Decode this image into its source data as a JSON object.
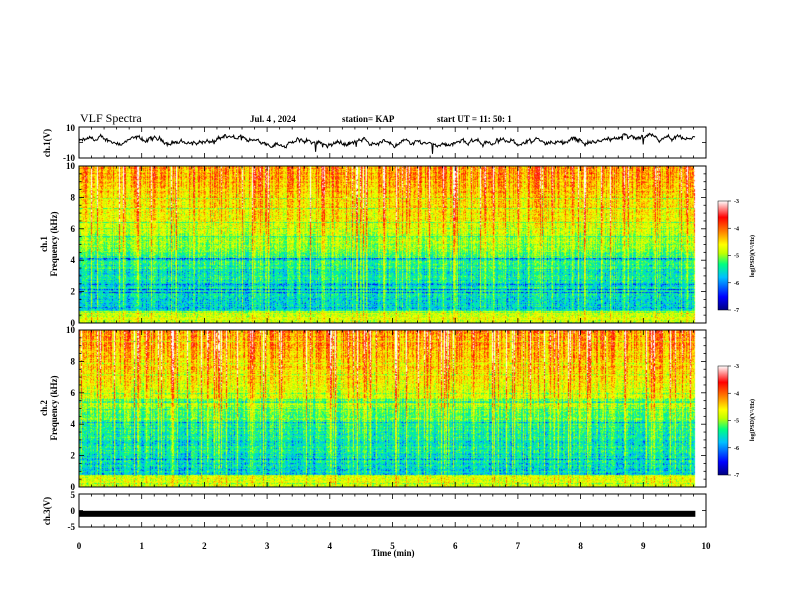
{
  "header": {
    "title": "VLF Spectra",
    "date": "Jul. 4 , 2024",
    "station": "station= KAP",
    "start": "start UT =  11: 50: 1"
  },
  "chart_data": [
    {
      "type": "line",
      "name": "ch1-waveform",
      "ylabel": "ch.1(V)",
      "ylim": [
        -10,
        10
      ],
      "yticks": [
        "10",
        "-10"
      ],
      "x_range_min": [
        0,
        9.83
      ],
      "approx_baseline_v": 0.5
    },
    {
      "type": "heatmap",
      "name": "ch1-spectrogram",
      "ylabel": "ch.1\nFrequency (kHz)",
      "ylim": [
        0,
        10
      ],
      "yticks": [
        "0",
        "2",
        "4",
        "6",
        "8",
        "10"
      ],
      "x_range_min": [
        0,
        9.83
      ],
      "colorbar": {
        "label": "log(PSD)(V²/Hz)",
        "range": [
          -7,
          -3
        ],
        "ticks": [
          "-3",
          "-4",
          "-5",
          "-6",
          "-7"
        ],
        "colors": [
          "#000080",
          "#0000ff",
          "#00c0ff",
          "#00ff80",
          "#c0ff00",
          "#ffff00",
          "#ff8000",
          "#ff0000",
          "#ffffff"
        ]
      }
    },
    {
      "type": "heatmap",
      "name": "ch2-spectrogram",
      "ylabel": "ch.2\nFrequency (kHz)",
      "ylim": [
        0,
        10
      ],
      "yticks": [
        "0",
        "2",
        "4",
        "6",
        "8",
        "10"
      ],
      "x_range_min": [
        0,
        9.83
      ],
      "colorbar": {
        "label": "log(PSD)(V²/Hz)",
        "range": [
          -7,
          -3
        ],
        "ticks": [
          "-3",
          "-4",
          "-5",
          "-6",
          "-7"
        ],
        "colors": [
          "#000080",
          "#0000ff",
          "#00c0ff",
          "#00ff80",
          "#c0ff00",
          "#ffff00",
          "#ff8000",
          "#ff0000",
          "#ffffff"
        ]
      }
    },
    {
      "type": "line",
      "name": "ch3-signal",
      "ylabel": "ch.3(V)",
      "ylim": [
        -5,
        5
      ],
      "yticks": [
        "5",
        "0",
        "-5"
      ],
      "x_range_min": [
        0,
        9.83
      ],
      "level_v": -1
    }
  ],
  "xaxis": {
    "label": "Time (min)",
    "ticks": [
      "0",
      "1",
      "2",
      "3",
      "4",
      "5",
      "6",
      "7",
      "8",
      "9",
      "10"
    ],
    "range": [
      0,
      10
    ]
  }
}
